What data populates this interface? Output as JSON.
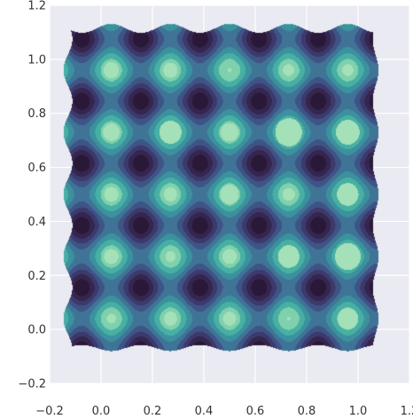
{
  "chart_data": {
    "type": "heatmap",
    "subtype": "filled-contour (kernel density)",
    "title": "",
    "xlabel": "",
    "ylabel": "",
    "xlim": [
      -0.2,
      1.2
    ],
    "ylim": [
      -0.2,
      1.2
    ],
    "xticks": [
      -0.2,
      0.0,
      0.2,
      0.4,
      0.6,
      0.8,
      1.0,
      1.2
    ],
    "yticks": [
      -0.2,
      0.0,
      0.2,
      0.4,
      0.6,
      0.8,
      1.0,
      1.2
    ],
    "xtick_labels": [
      "−0.2",
      "0.0",
      "0.2",
      "0.4",
      "0.6",
      "0.8",
      "1.0",
      "1.2"
    ],
    "ytick_labels": [
      "−0.2",
      "0.0",
      "0.2",
      "0.4",
      "0.6",
      "0.8",
      "1.0",
      "1.2"
    ],
    "grid": true,
    "background": "#eaeaf2",
    "grid_color": "#ffffff",
    "colormap": [
      "#2a1838",
      "#35264f",
      "#3c3a6c",
      "#3f5486",
      "#3f7496",
      "#3b919e",
      "#47afa4",
      "#7fd0ad",
      "#a4e0b8"
    ],
    "peak_x": [
      0.04,
      0.27,
      0.5,
      0.73,
      0.96
    ],
    "peak_y": [
      0.04,
      0.27,
      0.5,
      0.73,
      0.96
    ],
    "peak_rows_from_top": [
      {
        "y": 0.96,
        "highlight_radius": [
          0.03,
          0.028,
          0.008,
          0.022,
          0.022
        ]
      },
      {
        "y": 0.73,
        "highlight_radius": [
          0.032,
          0.043,
          0.034,
          0.052,
          0.046
        ]
      },
      {
        "y": 0.5,
        "highlight_radius": [
          0.028,
          0.026,
          0.036,
          0.024,
          0.042
        ]
      },
      {
        "y": 0.27,
        "highlight_radius": [
          0.028,
          0.02,
          0.028,
          0.042,
          0.05
        ]
      },
      {
        "y": 0.04,
        "highlight_radius": [
          0.018,
          0.026,
          0.026,
          0.007,
          0.04
        ]
      }
    ],
    "density_extent": {
      "x": [
        -0.13,
        1.08
      ],
      "y": [
        -0.08,
        1.12
      ]
    }
  }
}
